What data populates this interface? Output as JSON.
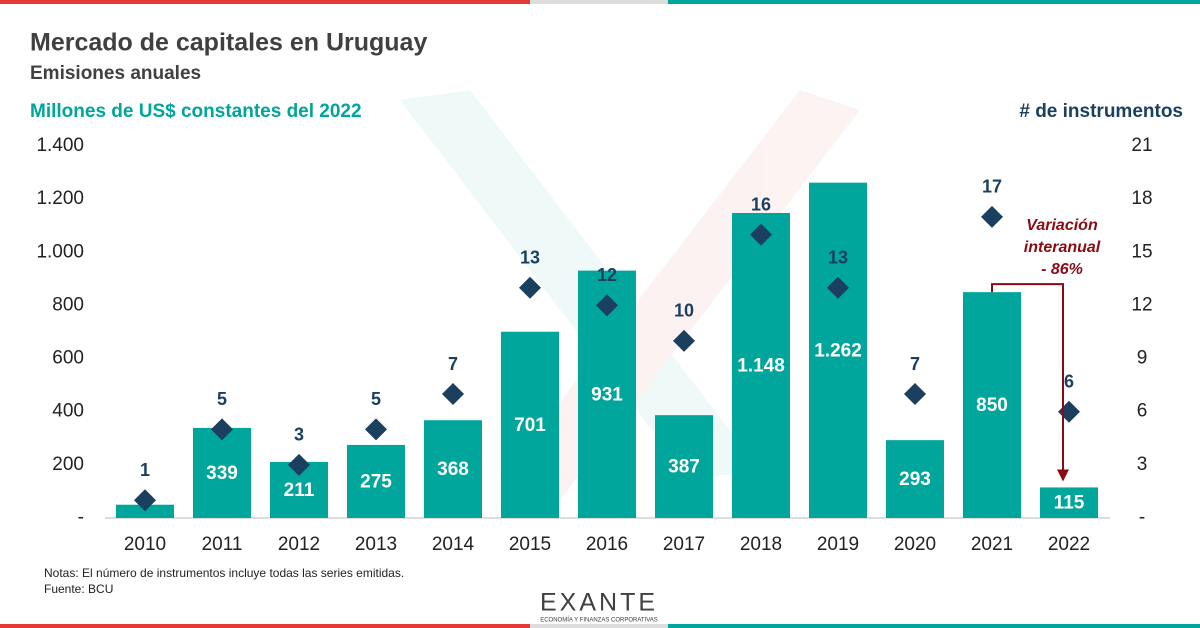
{
  "chart_data": {
    "type": "bar",
    "title": "Mercado de capitales en Uruguay",
    "subtitle": "Emisiones anuales",
    "y_label": "Millones de US$ constantes del 2022",
    "y2_label": "# de instrumentos",
    "categories": [
      "2010",
      "2011",
      "2012",
      "2013",
      "2014",
      "2015",
      "2016",
      "2017",
      "2018",
      "2019",
      "2020",
      "2021",
      "2022"
    ],
    "series": [
      {
        "type": "bar",
        "color": "#00a59b",
        "values": [
          50,
          339,
          211,
          275,
          368,
          701,
          931,
          387,
          1148,
          1262,
          293,
          850,
          115
        ],
        "value_labels": [
          null,
          "339",
          "211",
          "275",
          "368",
          "701",
          "931",
          "387",
          "1.148",
          "1.262",
          "293",
          "850",
          "115"
        ]
      },
      {
        "type": "scatter",
        "color": "#1b3f5e",
        "axis": "y2",
        "values": [
          1,
          5,
          3,
          5,
          7,
          13,
          12,
          10,
          16,
          13,
          7,
          17,
          6
        ]
      }
    ],
    "ylim": [
      0,
      1400
    ],
    "yticks": [
      {
        "value": 0,
        "label": "-"
      },
      200,
      400,
      600,
      800,
      {
        "value": 1000,
        "label": "1.000"
      },
      {
        "value": 1200,
        "label": "1.200"
      },
      {
        "value": 1400,
        "label": "1.400"
      }
    ],
    "y2lim": [
      0,
      21
    ],
    "y2ticks": [
      {
        "value": 0,
        "label": "-"
      },
      3,
      6,
      9,
      12,
      15,
      18,
      21
    ],
    "annotation": {
      "lines": [
        "Variación",
        "interanual",
        "- 86%"
      ],
      "color": "#8b0a14",
      "from": 11,
      "to": 12
    },
    "notes": [
      "Notas: El número de instrumentos incluye todas las series emitidas.",
      "Fuente: BCU"
    ]
  },
  "brand": {
    "name": "EXANTE",
    "tagline": "ECONOMÍA Y FINANZAS CORPORATIVAS"
  }
}
